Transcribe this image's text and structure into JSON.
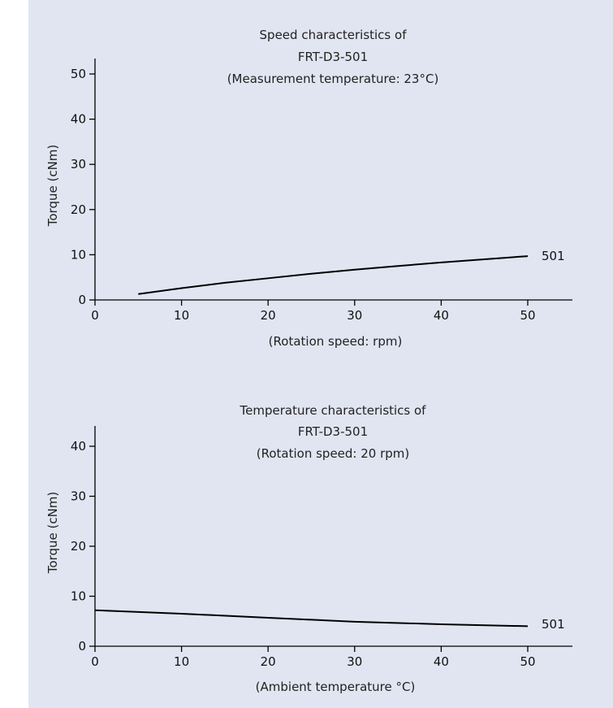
{
  "background_color": "#e1e5f2",
  "line_color": "#000000",
  "chart_data": [
    {
      "type": "line",
      "title_lines": [
        "Speed characteristics of",
        "FRT-D3-501",
        "(Measurement temperature: 23°C)"
      ],
      "xlabel": "(Rotation speed: rpm)",
      "ylabel": "Torque (cNm)",
      "xlim": [
        0,
        55
      ],
      "ylim": [
        0,
        54
      ],
      "xticks": [
        0,
        10,
        20,
        30,
        40,
        50
      ],
      "yticks": [
        0,
        10,
        20,
        30,
        40,
        50
      ],
      "grid": false,
      "series": [
        {
          "name": "501",
          "x": [
            5,
            10,
            15,
            20,
            25,
            30,
            35,
            40,
            45,
            50
          ],
          "y": [
            1.3,
            2.6,
            3.8,
            4.8,
            5.8,
            6.7,
            7.5,
            8.3,
            9.0,
            9.7
          ]
        }
      ]
    },
    {
      "type": "line",
      "title_lines": [
        "Temperature characteristics of",
        "FRT-D3-501",
        "(Rotation speed: 20 rpm)"
      ],
      "xlabel": "(Ambient temperature °C)",
      "ylabel": "Torque (cNm)",
      "xlim": [
        0,
        55
      ],
      "ylim": [
        0,
        44
      ],
      "xticks": [
        0,
        10,
        20,
        30,
        40,
        50
      ],
      "yticks": [
        0,
        10,
        20,
        30,
        40
      ],
      "grid": false,
      "series": [
        {
          "name": "501",
          "x": [
            0,
            10,
            20,
            30,
            40,
            50
          ],
          "y": [
            7.2,
            6.5,
            5.7,
            4.9,
            4.4,
            4.0
          ]
        }
      ]
    }
  ]
}
